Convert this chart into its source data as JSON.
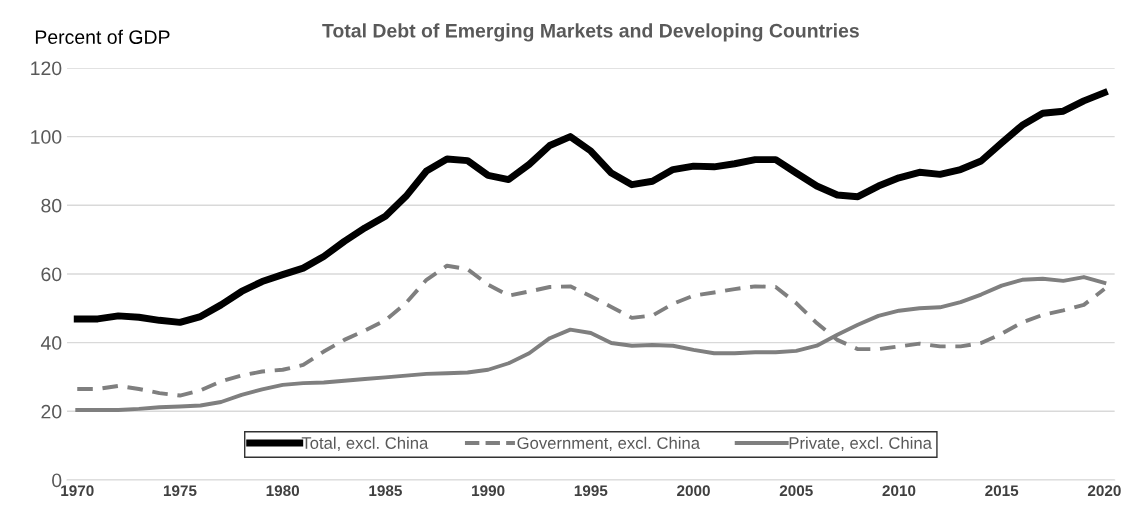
{
  "chart_data": {
    "type": "line",
    "title": "Total Debt of Emerging Markets and Developing Countries",
    "ylabel": "Percent of GDP",
    "x": [
      1970,
      1971,
      1972,
      1973,
      1974,
      1975,
      1976,
      1977,
      1978,
      1979,
      1980,
      1981,
      1982,
      1983,
      1984,
      1985,
      1986,
      1987,
      1988,
      1989,
      1990,
      1991,
      1992,
      1993,
      1994,
      1995,
      1996,
      1997,
      1998,
      1999,
      2000,
      2001,
      2002,
      2003,
      2004,
      2005,
      2006,
      2007,
      2008,
      2009,
      2010,
      2011,
      2012,
      2013,
      2014,
      2015,
      2016,
      2017,
      2018,
      2019,
      2020
    ],
    "series": [
      {
        "name": "Total, excl. China",
        "color": "#000000",
        "line_style": "solid",
        "values": [
          46.9,
          46.9,
          47.8,
          47.4,
          46.5,
          45.9,
          47.6,
          51.0,
          54.9,
          57.8,
          59.8,
          61.7,
          65.1,
          69.5,
          73.4,
          76.8,
          82.6,
          90.0,
          93.5,
          93.0,
          88.7,
          87.5,
          91.9,
          97.4,
          100.0,
          95.8,
          89.4,
          86.0,
          87.0,
          90.4,
          91.4,
          91.2,
          92.1,
          93.3,
          93.3,
          89.4,
          85.6,
          83.0,
          82.5,
          85.6,
          88.0,
          89.6,
          89.0,
          90.4,
          92.9,
          98.2,
          103.3,
          106.8,
          107.4,
          110.4,
          112.8
        ]
      },
      {
        "name": "Government, excl. China",
        "color": "#7f7f7f",
        "line_style": "dashed",
        "values": [
          26.5,
          26.5,
          27.4,
          26.5,
          25.3,
          24.6,
          26.1,
          28.7,
          30.4,
          31.6,
          32.1,
          33.5,
          37.4,
          40.8,
          43.5,
          46.5,
          51.5,
          58.3,
          62.4,
          61.4,
          56.9,
          53.7,
          54.9,
          56.2,
          56.4,
          53.5,
          50.4,
          47.2,
          47.9,
          51.3,
          53.7,
          54.6,
          55.6,
          56.4,
          56.2,
          51.5,
          45.7,
          40.8,
          38.1,
          38.1,
          38.9,
          39.7,
          38.9,
          38.9,
          39.9,
          42.6,
          45.9,
          48.1,
          49.4,
          51.0,
          55.6
        ]
      },
      {
        "name": "Private, excl. China",
        "color": "#7f7f7f",
        "line_style": "solid",
        "values": [
          20.4,
          20.4,
          20.4,
          20.7,
          21.2,
          21.4,
          21.7,
          22.7,
          24.8,
          26.4,
          27.7,
          28.2,
          28.4,
          28.9,
          29.4,
          29.9,
          30.4,
          30.9,
          31.1,
          31.3,
          32.1,
          34.0,
          36.9,
          41.3,
          43.8,
          42.8,
          39.9,
          39.1,
          39.3,
          39.1,
          37.9,
          36.9,
          36.9,
          37.2,
          37.2,
          37.6,
          39.1,
          42.3,
          45.2,
          47.8,
          49.3,
          50.0,
          50.3,
          51.8,
          54.0,
          56.6,
          58.3,
          58.6,
          58.0,
          59.1,
          57.4
        ]
      }
    ],
    "xlim": [
      1969.5,
      2020.5
    ],
    "xticks": [
      1970,
      1975,
      1980,
      1985,
      1990,
      1995,
      2000,
      2005,
      2010,
      2015,
      2020
    ],
    "ylim": [
      0,
      120
    ],
    "yticks": [
      0,
      20,
      40,
      60,
      80,
      100,
      120
    ],
    "grid": "y",
    "legend": "bottom",
    "marker": "none"
  }
}
